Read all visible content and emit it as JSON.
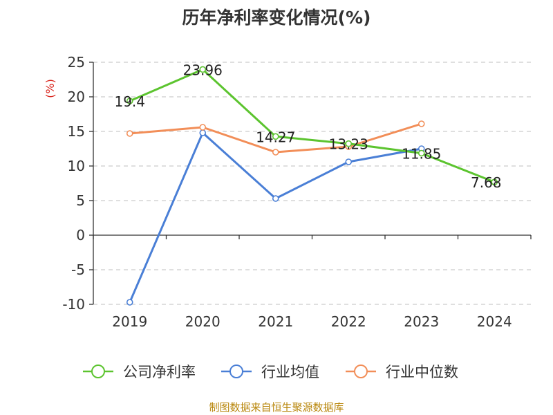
{
  "title": "历年净利率变化情况(%)",
  "footer": "制图数据来自恒生聚源数据库",
  "chart_data": {
    "type": "line",
    "title": "历年净利率变化情况(%)",
    "ylabel": "(%)",
    "xlabel": "",
    "categories": [
      "2019",
      "2020",
      "2021",
      "2022",
      "2023",
      "2024"
    ],
    "yticks": [
      25,
      20,
      15,
      10,
      5,
      0,
      -5,
      -10
    ],
    "ylim": [
      -10,
      25
    ],
    "grid": true,
    "legend_position": "bottom",
    "series": [
      {
        "name": "公司净利率",
        "color": "#5cc42f",
        "values": [
          19.4,
          23.96,
          14.27,
          13.23,
          11.85,
          7.68
        ],
        "labels": [
          "19.4",
          "23.96",
          "14.27",
          "13.23",
          "11.85",
          "7.68"
        ]
      },
      {
        "name": "行业均值",
        "color": "#4a7fd6",
        "values": [
          -9.7,
          14.8,
          5.3,
          10.6,
          12.5,
          null
        ]
      },
      {
        "name": "行业中位数",
        "color": "#f28e58",
        "values": [
          14.7,
          15.6,
          12.0,
          12.8,
          16.1,
          null
        ]
      }
    ]
  }
}
